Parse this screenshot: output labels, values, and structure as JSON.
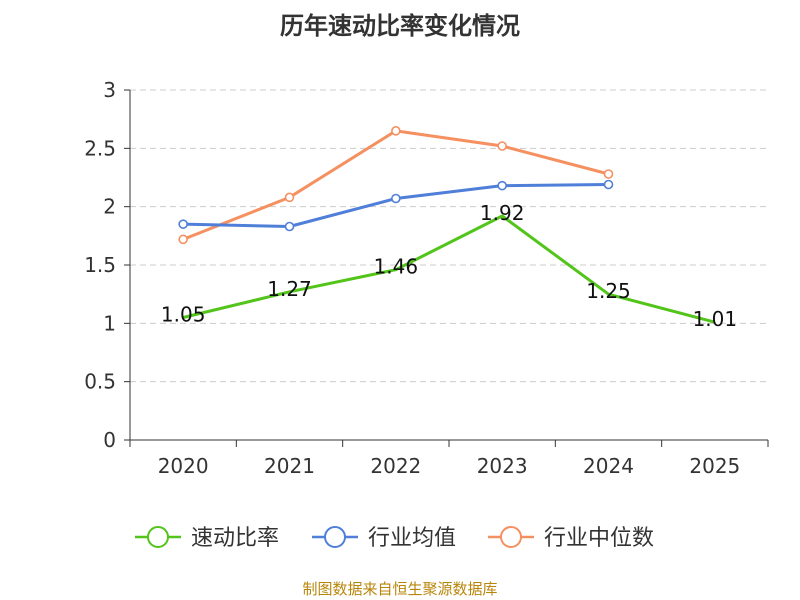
{
  "chart_data": {
    "type": "line",
    "title": "历年速动比率变化情况",
    "categories": [
      "2020",
      "2021",
      "2022",
      "2023",
      "2024",
      "2025"
    ],
    "ylim": [
      0,
      3
    ],
    "yticks": [
      0,
      0.5,
      1,
      1.5,
      2,
      2.5,
      3
    ],
    "ytick_labels": [
      "0",
      "0.5",
      "1",
      "1.5",
      "2",
      "2.5",
      "3"
    ],
    "grid": true,
    "legend_position": "bottom",
    "series": [
      {
        "name": "速动比率",
        "color": "#52c41a",
        "values": [
          1.05,
          1.27,
          1.46,
          1.92,
          1.25,
          1.01
        ],
        "data_labels": [
          "1.05",
          "1.27",
          "1.46",
          "1.92",
          "1.25",
          "1.01"
        ]
      },
      {
        "name": "行业均值",
        "color": "#4f7fd8",
        "values": [
          1.85,
          1.83,
          2.07,
          2.18,
          2.19,
          null
        ]
      },
      {
        "name": "行业中位数",
        "color": "#f59060",
        "values": [
          1.72,
          2.08,
          2.65,
          2.52,
          2.28,
          null
        ]
      }
    ]
  },
  "source": "制图数据来自恒生聚源数据库"
}
